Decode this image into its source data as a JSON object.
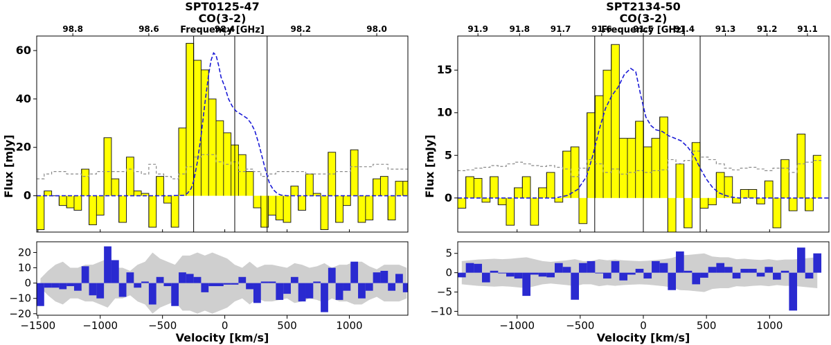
{
  "chart_data": [
    {
      "type": "step",
      "title": "SPT0125-47",
      "subtitle": "CO(3-2)",
      "top_axis_label": "Frequency [GHz]",
      "top_ticks": [
        "98.8",
        "98.6",
        "98.4",
        "98.2",
        "98.0"
      ],
      "top_tick_velocities": [
        -1220,
        -610,
        0,
        610,
        1220
      ],
      "xlabel": "Velocity [km/s]",
      "ylabel": "Flux [mJy]",
      "xlim": [
        -1510,
        1470
      ],
      "ylim": [
        -15,
        66
      ],
      "x_ticks": [
        -1500,
        -1000,
        -500,
        0,
        500,
        1000
      ],
      "y_ticks": [
        0,
        20,
        40,
        60
      ],
      "line_window": [
        -250,
        340
      ],
      "divider": 80,
      "bin_width": 60,
      "flux": [
        -14,
        2,
        0,
        -4,
        -5,
        -6,
        11,
        -12,
        -8,
        24,
        7,
        -11,
        16,
        2,
        1,
        -13,
        8,
        -3,
        -13,
        28,
        63,
        56,
        52,
        40,
        31,
        26,
        21,
        17,
        10,
        -5,
        -13,
        -8,
        -10,
        -11,
        4,
        -6,
        9,
        1,
        -14,
        18,
        -11,
        -4,
        19,
        -11,
        -10,
        7,
        8,
        -10,
        6,
        6
      ],
      "model_x": [
        -1510,
        -450,
        -330,
        -300,
        -270,
        -250,
        -220,
        -190,
        -160,
        -130,
        -110,
        -90,
        -70,
        -50,
        -30,
        0,
        30,
        60,
        90,
        120,
        150,
        180,
        210,
        240,
        270,
        300,
        330,
        360,
        390,
        420,
        450,
        500,
        1470
      ],
      "model_y": [
        0,
        0,
        0.2,
        1,
        3,
        6,
        14,
        25,
        38,
        50,
        56,
        59,
        58,
        54,
        49,
        45,
        40,
        37,
        35,
        34,
        33,
        32,
        30,
        27,
        22,
        16,
        10,
        5,
        2.5,
        1,
        0.3,
        0,
        0
      ],
      "noise": [
        7,
        9,
        10,
        10,
        9,
        9,
        8,
        9,
        10,
        10,
        10,
        10,
        11,
        10,
        9,
        13,
        9,
        8,
        7,
        9,
        12,
        16,
        17,
        17,
        14,
        13,
        14,
        10,
        11,
        10,
        8,
        9,
        10,
        10,
        10,
        10,
        9,
        9,
        9,
        9,
        10,
        10,
        12,
        12,
        12,
        13,
        13,
        11,
        11,
        11
      ],
      "residual": {
        "ylim": [
          -21,
          27
        ],
        "y_ticks": [
          -20,
          -10,
          0,
          10,
          20
        ],
        "values": [
          -15,
          -3,
          -3,
          -4,
          -2,
          -5,
          11,
          -8,
          -10,
          24,
          15,
          -9,
          7,
          -3,
          1,
          -14,
          4,
          -2,
          -15,
          7,
          6,
          4,
          -6,
          -2,
          -2,
          -1,
          -1,
          4,
          -4,
          -13,
          1,
          1,
          -11,
          -7,
          4,
          -12,
          -10,
          1,
          -19,
          10,
          -11,
          -5,
          14,
          -10,
          -5,
          7,
          8,
          -5,
          6,
          -6
        ],
        "band": [
          -3,
          -8,
          -12,
          -14,
          -10,
          -10,
          -12,
          -12,
          -14,
          -16,
          -10,
          -10,
          -8,
          -12,
          -14,
          -20,
          -16,
          -14,
          -12,
          -18,
          -18,
          -20,
          -18,
          -20,
          -18,
          -16,
          -12,
          -10,
          -14,
          -10,
          -12,
          -12,
          -11,
          -10,
          -13,
          -12,
          -10,
          -11,
          -13,
          -10,
          -12,
          -12,
          -14,
          -14,
          -11,
          -9,
          -12,
          -12,
          -12,
          -10
        ]
      }
    },
    {
      "type": "step",
      "title": "SPT2134-50",
      "subtitle": "CO(3-2)",
      "top_axis_label": "Frequency [GHz]",
      "top_ticks": [
        "91.9",
        "91.8",
        "91.7",
        "91.6",
        "91.5",
        "91.4",
        "91.3",
        "91.2",
        "91.1"
      ],
      "top_tick_velocities": [
        -1310,
        -980,
        -655,
        -330,
        0,
        325,
        650,
        980,
        1300
      ],
      "xlabel": "Velocity [km/s]",
      "ylabel": "Flux [mJy]",
      "xlim": [
        -1470,
        1470
      ],
      "ylim": [
        -4,
        19
      ],
      "x_ticks": [
        -1000,
        -500,
        0,
        500,
        1000
      ],
      "y_ticks": [
        0,
        5,
        10,
        15
      ],
      "line_window": [
        -385,
        450
      ],
      "divider": 0,
      "bin_width": 64,
      "flux": [
        -1.2,
        2.5,
        2.3,
        -0.5,
        2.5,
        -0.8,
        -3.2,
        1.2,
        2.5,
        -3.2,
        1.2,
        3,
        -0.5,
        5.5,
        6,
        -3,
        10,
        12,
        15,
        18,
        7,
        7,
        9,
        6,
        7,
        9.5,
        -4,
        4,
        -3.5,
        6.5,
        -1.2,
        -0.8,
        3,
        2.5,
        -0.6,
        1,
        1,
        -0.7,
        2,
        -3.5,
        4.5,
        -1.5,
        7.5,
        -1.5,
        5
      ],
      "model_x": [
        -1470,
        -700,
        -600,
        -520,
        -450,
        -400,
        -350,
        -300,
        -250,
        -200,
        -150,
        -100,
        -60,
        -20,
        20,
        60,
        100,
        150,
        200,
        250,
        300,
        350,
        400,
        450,
        500,
        550,
        600,
        650,
        700,
        760,
        1470
      ],
      "model_y": [
        0,
        0,
        0.3,
        1,
        2.5,
        5,
        8,
        10.5,
        12,
        13,
        14.5,
        15.2,
        14.8,
        12,
        9.5,
        8.5,
        8,
        7.8,
        7.3,
        7,
        6.7,
        6,
        5,
        3.5,
        2.2,
        1.2,
        0.6,
        0.3,
        0.1,
        0,
        0
      ],
      "noise": [
        3.2,
        3.3,
        3.5,
        3.6,
        3.8,
        3.7,
        4,
        4.2,
        4,
        3.8,
        3.7,
        3.8,
        3.6,
        3.4,
        2.5,
        3.5,
        4.5,
        4,
        3,
        3.4,
        2.8,
        3,
        3.2,
        3,
        3.2,
        3.3,
        4.5,
        4,
        4.4,
        5.5,
        4.8,
        4.5,
        4,
        3.5,
        3.3,
        3.5,
        3.6,
        3.4,
        3.2,
        3.5,
        3.5,
        3,
        4,
        4.2,
        4.4
      ],
      "residual": {
        "ylim": [
          -11,
          8
        ],
        "y_ticks": [
          -10,
          -5,
          0,
          5
        ],
        "values": [
          -1.2,
          2.5,
          2.3,
          -2.5,
          0.5,
          0,
          -1,
          -1.5,
          -6,
          -0.5,
          -1,
          -1.2,
          2.5,
          1.5,
          -7,
          2.5,
          3,
          0,
          -1.5,
          3,
          -2,
          -0.5,
          1,
          -1.5,
          3,
          2.5,
          -4.5,
          5.5,
          0.5,
          -3,
          -1.3,
          1.5,
          2.5,
          1.5,
          -1.5,
          1,
          1,
          -1,
          1.5,
          -1.8,
          0.5,
          -9.8,
          6.5,
          -1.5,
          5
        ],
        "band": [
          -3,
          -3.2,
          -3.4,
          -3.5,
          -3.6,
          -3.5,
          -3.6,
          -3.8,
          -4,
          -3.5,
          -3,
          -2.8,
          -3,
          -3.2,
          -3.5,
          -3,
          -3,
          -3.5,
          -3.2,
          -3.4,
          -3.2,
          -3.1,
          -3,
          -3.1,
          -3.3,
          -3.5,
          -3.8,
          -4.5,
          -4.6,
          -4.8,
          -5,
          -4.2,
          -4,
          -4,
          -3.5,
          -3.6,
          -3.4,
          -3.3,
          -3.5,
          -3.2,
          -3.4,
          -3.4,
          -3.6,
          -3.8,
          -4
        ]
      }
    }
  ]
}
